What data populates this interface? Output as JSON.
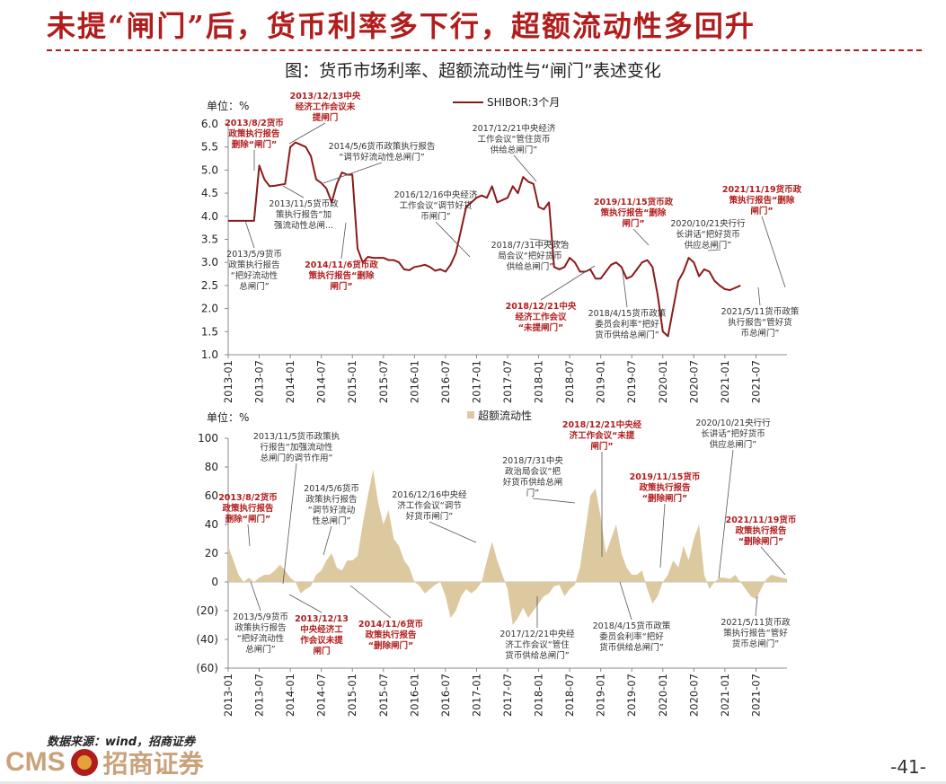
{
  "slide": {
    "title": "未提“闸门”后，货币利率多下行，超额流动性多回升",
    "figure_title": "图：货币市场利率、超额流动性与“闸门”表述变化",
    "source": "数据来源：wind，招商证券",
    "logo_text": "CMS",
    "logo_cn": "招商证券",
    "page_number": "-41-"
  },
  "colors": {
    "accent": "#b11d1d",
    "line": "#8b1a1a",
    "area": "#ddc9a0",
    "annotation_black": "#333333"
  },
  "x_ticks": [
    "2013-01",
    "2013-07",
    "2014-01",
    "2014-07",
    "2015-01",
    "2015-07",
    "2016-01",
    "2016-07",
    "2017-01",
    "2017-07",
    "2018-01",
    "2018-07",
    "2019-01",
    "2019-07",
    "2020-01",
    "2020-07",
    "2021-01",
    "2021-07"
  ],
  "chart_data": [
    {
      "type": "line",
      "title": "",
      "unit_label": "单位：%",
      "legend": "SHIBOR:3个月",
      "ylim": [
        1.0,
        6.0
      ],
      "y_ticks": [
        "1.0",
        "1.5",
        "2.0",
        "2.5",
        "3.0",
        "3.5",
        "4.0",
        "4.5",
        "5.0",
        "5.5",
        "6.0"
      ],
      "x_start": "2013-01",
      "series": [
        {
          "name": "SHIBOR:3个月",
          "values": [
            3.9,
            3.9,
            3.9,
            3.9,
            3.9,
            3.9,
            5.1,
            4.8,
            4.65,
            4.66,
            4.68,
            4.7,
            5.5,
            5.6,
            5.55,
            5.5,
            5.3,
            4.8,
            4.72,
            4.6,
            4.3,
            4.7,
            4.95,
            4.9,
            4.9,
            3.3,
            3.0,
            3.12,
            3.1,
            3.1,
            3.1,
            3.05,
            3.05,
            3.0,
            2.85,
            2.83,
            2.9,
            2.92,
            2.95,
            2.9,
            2.82,
            2.85,
            2.8,
            2.95,
            3.2,
            3.7,
            4.2,
            4.3,
            4.4,
            4.45,
            4.4,
            4.65,
            4.3,
            4.35,
            4.4,
            4.65,
            4.5,
            4.85,
            4.75,
            4.7,
            4.2,
            4.15,
            4.3,
            2.9,
            2.85,
            2.9,
            3.1,
            3.0,
            2.8,
            2.8,
            2.85,
            2.65,
            2.65,
            2.8,
            2.95,
            3.0,
            2.9,
            2.65,
            2.7,
            2.85,
            3.0,
            3.05,
            2.9,
            2.3,
            1.5,
            1.4,
            2.0,
            2.6,
            2.8,
            3.1,
            3.0,
            2.7,
            2.85,
            2.8,
            2.6,
            2.5,
            2.42,
            2.4,
            2.45,
            2.5
          ]
        }
      ],
      "annotations": [
        {
          "date": "2013-08",
          "text": [
            "2013/8/2货币",
            "政策执行报告",
            "删除“闸门”"
          ],
          "color": "red"
        },
        {
          "date": "2013-12",
          "text": [
            "2013/12/13中央",
            "经济工作会议未",
            "提闸门"
          ],
          "color": "red"
        },
        {
          "date": "2014-05",
          "text": [
            "2014/5/6货币政策执行报告",
            "“调节好流动性总闸门”"
          ],
          "color": "black"
        },
        {
          "date": "2013-11",
          "text": [
            "2013/11/5货币政",
            "策执行报告“加",
            "强流动性总闸..."
          ],
          "color": "black"
        },
        {
          "date": "2013-05",
          "text": [
            "2013/5/9货币",
            "政策执行报告",
            "“把好流动性",
            "总闸门”"
          ],
          "color": "black"
        },
        {
          "date": "2014-11",
          "text": [
            "2014/11/6货币政",
            "策执行报告“删除",
            "闸门”"
          ],
          "color": "red"
        },
        {
          "date": "2016-12",
          "text": [
            "2016/12/16中央经济",
            "工作会议“调节好货",
            "币闸门”"
          ],
          "color": "black"
        },
        {
          "date": "2017-12",
          "text": [
            "2017/12/21中央经济",
            "工作会议“管住货币",
            "供给总闸门”"
          ],
          "color": "black"
        },
        {
          "date": "2018-07",
          "text": [
            "2018/7/31中央政治",
            "局会议“把好货币",
            "供给总闸门”"
          ],
          "color": "black"
        },
        {
          "date": "2018-12",
          "text": [
            "2018/12/21中央",
            "经济工作会议",
            "“未提闸门”"
          ],
          "color": "red"
        },
        {
          "date": "2019-11",
          "text": [
            "2019/11/15货币政",
            "策执行报告“删除",
            "闸门”"
          ],
          "color": "red"
        },
        {
          "date": "2020-10",
          "text": [
            "2020/10/21央行行",
            "长讲话“把好货币",
            "供应总闸门”"
          ],
          "color": "black"
        },
        {
          "date": "2021-11",
          "text": [
            "2021/11/19货币政",
            "策执行报告“删除",
            "闸门”"
          ],
          "color": "red"
        },
        {
          "date": "2018-04",
          "text": [
            "2018/4/15货币政策",
            "委员会利率“把好",
            "货币供给总闸门”"
          ],
          "color": "black"
        },
        {
          "date": "2021-05",
          "text": [
            "2021/5/11货币政策",
            "执行报告“管好货",
            "币总闸门”"
          ],
          "color": "black"
        }
      ]
    },
    {
      "type": "area",
      "title": "",
      "unit_label": "单位：%",
      "legend": "超额流动性",
      "ylim": [
        -60,
        100
      ],
      "y_ticks": [
        "(60)",
        "(40)",
        "(20)",
        "0",
        "20",
        "40",
        "60",
        "80",
        "100"
      ],
      "x_start": "2013-01",
      "series": [
        {
          "name": "超额流动性",
          "values": [
            25,
            15,
            5,
            0,
            3,
            0,
            3,
            5,
            5,
            8,
            12,
            8,
            3,
            0,
            -8,
            -5,
            -3,
            5,
            8,
            15,
            20,
            10,
            8,
            15,
            15,
            18,
            40,
            60,
            78,
            55,
            40,
            50,
            30,
            25,
            15,
            10,
            0,
            -3,
            -8,
            -5,
            -2,
            0,
            -10,
            -25,
            -20,
            -10,
            -5,
            -8,
            -5,
            0,
            15,
            28,
            15,
            5,
            -5,
            -30,
            -25,
            -18,
            -25,
            -20,
            -15,
            -10,
            -8,
            -3,
            -2,
            -10,
            -5,
            -2,
            10,
            35,
            60,
            65,
            45,
            20,
            30,
            40,
            20,
            10,
            5,
            5,
            8,
            -5,
            -15,
            -10,
            0,
            5,
            15,
            10,
            25,
            15,
            30,
            40,
            5,
            -5,
            0,
            3,
            3,
            2,
            5,
            0,
            -5,
            -10,
            -12,
            -5,
            2,
            5,
            4,
            3,
            2
          ]
        }
      ],
      "annotations": [
        {
          "date": "2013-11",
          "text": [
            "2013/11/5货币政策执",
            "行报告“加强流动性",
            "总闸门的调节作用”"
          ],
          "color": "black"
        },
        {
          "date": "2013-08",
          "text": [
            "2013/8/2货币",
            "政策执行报告",
            "删除“闸门”"
          ],
          "color": "red"
        },
        {
          "date": "2014-05",
          "text": [
            "2014/5/6货币",
            "政策执行报告",
            "“调节好流动",
            "性总闸门”"
          ],
          "color": "black"
        },
        {
          "date": "2016-12",
          "text": [
            "2016/12/16中央经",
            "济工作会议“调节",
            "好货币闸门”"
          ],
          "color": "black"
        },
        {
          "date": "2018-07",
          "text": [
            "2018/7/31中央",
            "政治局会议“把",
            "好货币供给总闸",
            "门”"
          ],
          "color": "black"
        },
        {
          "date": "2018-12",
          "text": [
            "2018/12/21中央经",
            "济工作会议“未提",
            "闸门”"
          ],
          "color": "red"
        },
        {
          "date": "2019-11",
          "text": [
            "2019/11/15货币",
            "政策执行报告",
            "“删除闸门”"
          ],
          "color": "red"
        },
        {
          "date": "2020-10",
          "text": [
            "2020/10/21央行行",
            "长讲话“把好货币",
            "供应总闸门”"
          ],
          "color": "black"
        },
        {
          "date": "2021-11",
          "text": [
            "2021/11/19货币",
            "政策执行报告",
            "“删除闸门”"
          ],
          "color": "red"
        },
        {
          "date": "2013-05",
          "text": [
            "2013/5/9货币",
            "政策执行报告",
            "“把好流动性",
            "总闸门”"
          ],
          "color": "black"
        },
        {
          "date": "2013-12",
          "text": [
            "2013/12/13",
            "中央经济工",
            "作会议未提",
            "闸门"
          ],
          "color": "red"
        },
        {
          "date": "2014-11",
          "text": [
            "2014/11/6货币",
            "政策执行报告",
            "“删除闸门”"
          ],
          "color": "red"
        },
        {
          "date": "2017-12",
          "text": [
            "2017/12/21中央经",
            "济工作会议“管住",
            "货币供给总闸门”"
          ],
          "color": "black"
        },
        {
          "date": "2018-04",
          "text": [
            "2018/4/15货币政策",
            "委员会利率“把好",
            "货币供给总闸门”"
          ],
          "color": "black"
        },
        {
          "date": "2021-05",
          "text": [
            "2021/5/11货币政",
            "策执行报告“管好",
            "货币总闸门”"
          ],
          "color": "black"
        }
      ]
    }
  ]
}
